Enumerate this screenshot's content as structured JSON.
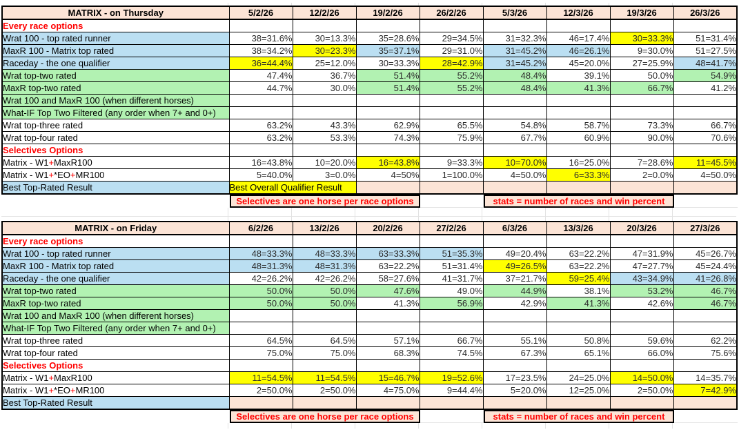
{
  "app": {
    "kind": "spreadsheet-screenshot"
  },
  "colors": {
    "peach": "#FCE4D6",
    "blue": "#BBDFF2",
    "green": "#B2F2B2",
    "yellow": "#FFFF00",
    "red": "#FF0000",
    "grid": "#E2E2E2",
    "border": "#000000"
  },
  "strings": {
    "best_overall": "Best Overall Qualifier Result",
    "note_left": "Selectives are one horse per race options",
    "note_right": "stats = number of races and win percent"
  },
  "tables": [
    {
      "id": "thursday",
      "title": "MATRIX - on Thursday",
      "dates": [
        "5/2/26",
        "12/2/26",
        "19/2/26",
        "26/2/26",
        "5/3/26",
        "12/3/26",
        "19/3/26",
        "26/3/26"
      ],
      "rows": [
        {
          "kind": "section",
          "label": "Every race options",
          "label_bg": "w"
        },
        {
          "kind": "data",
          "label": "Wrat 100 - top rated runner",
          "label_bg": "b",
          "cells": [
            [
              "38=31.6%",
              "w"
            ],
            [
              "30=13.3%",
              "w"
            ],
            [
              "35=28.6%",
              "w"
            ],
            [
              "29=34.5%",
              "w"
            ],
            [
              "31=32.3%",
              "w"
            ],
            [
              "46=17.4%",
              "w"
            ],
            [
              "30=33.3%",
              "y"
            ],
            [
              "51=31.4%",
              "w"
            ]
          ]
        },
        {
          "kind": "data",
          "label": "MaxR 100 - Matrix top rated",
          "label_bg": "b",
          "cells": [
            [
              "38=34.2%",
              "w"
            ],
            [
              "30=23.3%",
              "y"
            ],
            [
              "35=37.1%",
              "b"
            ],
            [
              "29=31.0%",
              "w"
            ],
            [
              "31=45.2%",
              "b"
            ],
            [
              "46=26.1%",
              "b"
            ],
            [
              "9=30.0%",
              "w"
            ],
            [
              "51=27.5%",
              "w"
            ]
          ]
        },
        {
          "kind": "data",
          "label": "Raceday - the one qualifier",
          "label_bg": "b",
          "cells": [
            [
              "36=44.4%",
              "y"
            ],
            [
              "25=12.0%",
              "w"
            ],
            [
              "30=33.3%",
              "w"
            ],
            [
              "28=42.9%",
              "y"
            ],
            [
              "31=45.2%",
              "b"
            ],
            [
              "45=20.0%",
              "w"
            ],
            [
              "27=25.9%",
              "w"
            ],
            [
              "48=41.7%",
              "b"
            ]
          ]
        },
        {
          "kind": "data",
          "label": "Wrat top-two rated",
          "label_bg": "g",
          "cells": [
            [
              "47.4%",
              "w"
            ],
            [
              "36.7%",
              "w"
            ],
            [
              "51.4%",
              "g"
            ],
            [
              "55.2%",
              "g"
            ],
            [
              "48.4%",
              "g"
            ],
            [
              "39.1%",
              "w"
            ],
            [
              "50.0%",
              "w"
            ],
            [
              "54.9%",
              "g"
            ]
          ]
        },
        {
          "kind": "data",
          "label": "MaxR top-two rated",
          "label_bg": "g",
          "cells": [
            [
              "44.7%",
              "w"
            ],
            [
              "30.0%",
              "w"
            ],
            [
              "51.4%",
              "g"
            ],
            [
              "55.2%",
              "g"
            ],
            [
              "48.4%",
              "g"
            ],
            [
              "41.3%",
              "g"
            ],
            [
              "66.7%",
              "g"
            ],
            [
              "41.2%",
              "w"
            ]
          ]
        },
        {
          "kind": "data",
          "label": "Wrat 100 and MaxR 100 (when different horses)",
          "label_bg": "g",
          "cells": [
            [
              "",
              "w"
            ],
            [
              "",
              "w"
            ],
            [
              "",
              "w"
            ],
            [
              "",
              "w"
            ],
            [
              "",
              "w"
            ],
            [
              "",
              "w"
            ],
            [
              "",
              "w"
            ],
            [
              "",
              "w"
            ]
          ]
        },
        {
          "kind": "data",
          "label": "What-IF Top Two Filtered (any order when 7+ and 0+)",
          "label_bg": "g",
          "cells": [
            [
              "",
              "w"
            ],
            [
              "",
              "w"
            ],
            [
              "",
              "w"
            ],
            [
              "",
              "w"
            ],
            [
              "",
              "w"
            ],
            [
              "",
              "w"
            ],
            [
              "",
              "w"
            ],
            [
              "",
              "w"
            ]
          ]
        },
        {
          "kind": "data",
          "label": "Wrat top-three rated",
          "label_bg": "w",
          "cells": [
            [
              "63.2%",
              "w"
            ],
            [
              "43.3%",
              "w"
            ],
            [
              "62.9%",
              "w"
            ],
            [
              "65.5%",
              "w"
            ],
            [
              "54.8%",
              "w"
            ],
            [
              "58.7%",
              "w"
            ],
            [
              "73.3%",
              "w"
            ],
            [
              "66.7%",
              "w"
            ]
          ]
        },
        {
          "kind": "data",
          "label": "Wrat top-four rated",
          "label_bg": "w",
          "cells": [
            [
              "63.2%",
              "w"
            ],
            [
              "53.3%",
              "w"
            ],
            [
              "74.3%",
              "w"
            ],
            [
              "75.9%",
              "w"
            ],
            [
              "67.7%",
              "w"
            ],
            [
              "60.9%",
              "w"
            ],
            [
              "90.0%",
              "w"
            ],
            [
              "70.6%",
              "w"
            ]
          ]
        },
        {
          "kind": "section",
          "label": "Selectives Options",
          "label_bg": "w"
        },
        {
          "kind": "data",
          "label": "Matrix - W1+MaxR100",
          "label_bg": "w",
          "rich": [
            [
              "Matrix - W1",
              "k"
            ],
            [
              "+",
              "r"
            ],
            [
              "MaxR100",
              "k"
            ]
          ],
          "cells": [
            [
              "16=43.8%",
              "w"
            ],
            [
              "10=20.0%",
              "w"
            ],
            [
              "16=43.8%",
              "y"
            ],
            [
              "9=33.3%",
              "w"
            ],
            [
              "10=70.0%",
              "y"
            ],
            [
              "16=25.0%",
              "w"
            ],
            [
              "7=28.6%",
              "w"
            ],
            [
              "11=45.5%",
              "y"
            ]
          ]
        },
        {
          "kind": "data",
          "label": "Matrix - W1+*EO+MR100",
          "label_bg": "w",
          "rich": [
            [
              "Matrix - W1",
              "k"
            ],
            [
              "+",
              "r"
            ],
            [
              "*EO",
              "k"
            ],
            [
              "+",
              "r"
            ],
            [
              "MR100",
              "k"
            ]
          ],
          "cells": [
            [
              "5=40.0%",
              "w"
            ],
            [
              "3=0.0%",
              "w"
            ],
            [
              "4=50%",
              "w"
            ],
            [
              "1=100.0%",
              "w"
            ],
            [
              "4=50.0%",
              "w"
            ],
            [
              "6=33.3%",
              "y"
            ],
            [
              "2=0.0%",
              "w"
            ],
            [
              "4=50.0%",
              "w"
            ]
          ]
        },
        {
          "kind": "best",
          "label": "Best Top-Rated Result",
          "label_bg": "b",
          "overall": true
        }
      ]
    },
    {
      "id": "friday",
      "title": "MATRIX - on Friday",
      "dates": [
        "6/2/26",
        "13/2/26",
        "20/2/26",
        "27/2/26",
        "6/3/26",
        "13/3/26",
        "20/3/26",
        "27/3/26"
      ],
      "rows": [
        {
          "kind": "section",
          "label": "Every race options",
          "label_bg": "w"
        },
        {
          "kind": "data",
          "label": "Wrat 100 - top rated runner",
          "label_bg": "b",
          "cells": [
            [
              "48=33.3%",
              "b"
            ],
            [
              "48=33.3%",
              "b"
            ],
            [
              "63=33.3%",
              "b"
            ],
            [
              "51=35.3%",
              "b"
            ],
            [
              "49=20.4%",
              "w"
            ],
            [
              "63=22.2%",
              "w"
            ],
            [
              "47=31.9%",
              "w"
            ],
            [
              "45=26.7%",
              "w"
            ]
          ]
        },
        {
          "kind": "data",
          "label": "MaxR 100 - Matrix top rated",
          "label_bg": "b",
          "cells": [
            [
              "48=31.3%",
              "b"
            ],
            [
              "48=31.3%",
              "b"
            ],
            [
              "63=22.2%",
              "w"
            ],
            [
              "51=31.4%",
              "w"
            ],
            [
              "49=26.5%",
              "y"
            ],
            [
              "63=22.2%",
              "w"
            ],
            [
              "47=27.7%",
              "w"
            ],
            [
              "45=24.4%",
              "w"
            ]
          ]
        },
        {
          "kind": "data",
          "label": "Raceday - the one qualifier",
          "label_bg": "b",
          "cells": [
            [
              "42=26.2%",
              "w"
            ],
            [
              "42=26.2%",
              "w"
            ],
            [
              "58=27.6%",
              "w"
            ],
            [
              "41=31.7%",
              "w"
            ],
            [
              "37=21.7%",
              "w"
            ],
            [
              "59=25.4%",
              "y"
            ],
            [
              "43=34.9%",
              "b"
            ],
            [
              "41=26.8%",
              "b"
            ]
          ]
        },
        {
          "kind": "data",
          "label": "Wrat top-two rated",
          "label_bg": "g",
          "cells": [
            [
              "50.0%",
              "g"
            ],
            [
              "50.0%",
              "g"
            ],
            [
              "47.6%",
              "g"
            ],
            [
              "49.0%",
              "w"
            ],
            [
              "44.9%",
              "g"
            ],
            [
              "38.1%",
              "w"
            ],
            [
              "53.2%",
              "g"
            ],
            [
              "46.7%",
              "g"
            ]
          ]
        },
        {
          "kind": "data",
          "label": "MaxR top-two rated",
          "label_bg": "g",
          "cells": [
            [
              "50.0%",
              "g"
            ],
            [
              "50.0%",
              "g"
            ],
            [
              "41.3%",
              "w"
            ],
            [
              "56.9%",
              "g"
            ],
            [
              "42.9%",
              "w"
            ],
            [
              "41.3%",
              "g"
            ],
            [
              "42.6%",
              "w"
            ],
            [
              "46.7%",
              "g"
            ]
          ]
        },
        {
          "kind": "data",
          "label": "Wrat 100 and MaxR 100 (when different horses)",
          "label_bg": "g",
          "cells": [
            [
              "",
              "w"
            ],
            [
              "",
              "w"
            ],
            [
              "",
              "w"
            ],
            [
              "",
              "w"
            ],
            [
              "",
              "w"
            ],
            [
              "",
              "w"
            ],
            [
              "",
              "w"
            ],
            [
              "",
              "w"
            ]
          ]
        },
        {
          "kind": "data",
          "label": "What-IF Top Two Filtered (any order when 7+ and 0+)",
          "label_bg": "g",
          "cells": [
            [
              "",
              "w"
            ],
            [
              "",
              "w"
            ],
            [
              "",
              "w"
            ],
            [
              "",
              "w"
            ],
            [
              "",
              "w"
            ],
            [
              "",
              "w"
            ],
            [
              "",
              "w"
            ],
            [
              "",
              "w"
            ]
          ]
        },
        {
          "kind": "data",
          "label": "Wrat top-three rated",
          "label_bg": "w",
          "cells": [
            [
              "64.5%",
              "w"
            ],
            [
              "64.5%",
              "w"
            ],
            [
              "57.1%",
              "w"
            ],
            [
              "66.7%",
              "w"
            ],
            [
              "55.1%",
              "w"
            ],
            [
              "50.8%",
              "w"
            ],
            [
              "59.6%",
              "w"
            ],
            [
              "62.2%",
              "w"
            ]
          ]
        },
        {
          "kind": "data",
          "label": "Wrat top-four rated",
          "label_bg": "w",
          "cells": [
            [
              "75.0%",
              "w"
            ],
            [
              "75.0%",
              "w"
            ],
            [
              "68.3%",
              "w"
            ],
            [
              "74.5%",
              "w"
            ],
            [
              "67.3%",
              "w"
            ],
            [
              "65.1%",
              "w"
            ],
            [
              "66.0%",
              "w"
            ],
            [
              "75.6%",
              "w"
            ]
          ]
        },
        {
          "kind": "section",
          "label": "Selectives Options",
          "label_bg": "w"
        },
        {
          "kind": "data",
          "label": "Matrix - W1+MaxR100",
          "label_bg": "w",
          "rich": [
            [
              "Matrix - W1",
              "k"
            ],
            [
              "+",
              "r"
            ],
            [
              "MaxR100",
              "k"
            ]
          ],
          "cells": [
            [
              "11=54.5%",
              "y"
            ],
            [
              "11=54.5%",
              "y"
            ],
            [
              "15=46.7%",
              "y"
            ],
            [
              "19=52.6%",
              "y"
            ],
            [
              "17=23.5%",
              "w"
            ],
            [
              "24=25.0%",
              "w"
            ],
            [
              "14=50.0%",
              "y"
            ],
            [
              "14=35.7%",
              "w"
            ]
          ]
        },
        {
          "kind": "data",
          "label": "Matrix - W1+*EO+MR100",
          "label_bg": "w",
          "rich": [
            [
              "Matrix - W1",
              "k"
            ],
            [
              "+",
              "r"
            ],
            [
              "*EO",
              "k"
            ],
            [
              "+",
              "r"
            ],
            [
              "MR100",
              "k"
            ]
          ],
          "cells": [
            [
              "2=50.0%",
              "w"
            ],
            [
              "2=50.0%",
              "w"
            ],
            [
              "4=75.0%",
              "w"
            ],
            [
              "9=44.4%",
              "w"
            ],
            [
              "5=20.0%",
              "w"
            ],
            [
              "12=25.0%",
              "w"
            ],
            [
              "2=50.0%",
              "w"
            ],
            [
              "7=42.9%",
              "y"
            ]
          ]
        },
        {
          "kind": "best",
          "label": "Best Top-Rated Result",
          "label_bg": "b",
          "overall": false
        }
      ]
    }
  ]
}
